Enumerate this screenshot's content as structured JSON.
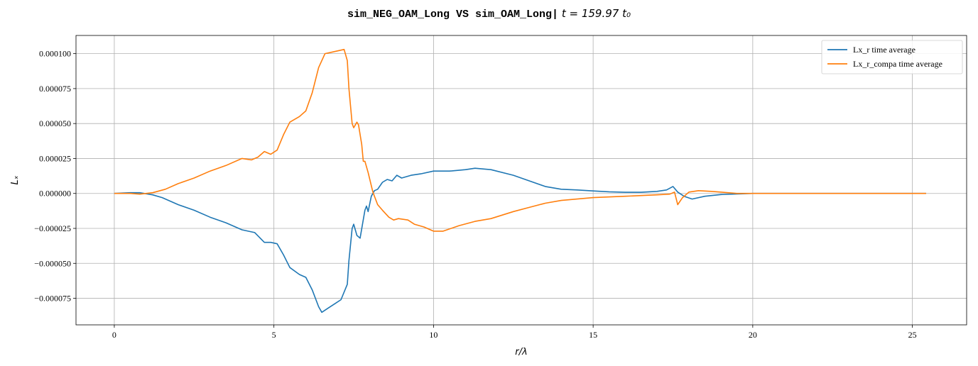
{
  "chart_data": {
    "type": "line",
    "title": {
      "prefix": "sim_NEG_OAM_Long VS sim_OAM_Long|",
      "math": "t = 159.97 t₀"
    },
    "xlabel": "r/λ",
    "ylabel": "Lₓ",
    "xlim": [
      -1.2,
      26.7
    ],
    "ylim": [
      -9.4e-05,
      0.000113
    ],
    "xticks": [
      0,
      5,
      10,
      15,
      20,
      25
    ],
    "xtick_labels": [
      "0",
      "5",
      "10",
      "15",
      "20",
      "25"
    ],
    "yticks": [
      -7.5e-05,
      -5e-05,
      -2.5e-05,
      0,
      2.5e-05,
      5e-05,
      7.5e-05,
      0.0001
    ],
    "ytick_labels": [
      "−0.000075",
      "−0.000050",
      "−0.000025",
      "0.000000",
      "0.000025",
      "0.000050",
      "0.000075",
      "0.000100"
    ],
    "grid": true,
    "legend_position": "upper right",
    "series": [
      {
        "name": "Lx_r time average",
        "color": "#1f77b4",
        "points": [
          [
            0,
            0
          ],
          [
            0.5,
            5e-07
          ],
          [
            0.8,
            5e-07
          ],
          [
            1.2,
            -1e-06
          ],
          [
            1.5,
            -3e-06
          ],
          [
            2.0,
            -8e-06
          ],
          [
            2.5,
            -1.2e-05
          ],
          [
            3.0,
            -1.7e-05
          ],
          [
            3.5,
            -2.1e-05
          ],
          [
            4.0,
            -2.6e-05
          ],
          [
            4.4,
            -2.8e-05
          ],
          [
            4.7,
            -3.5e-05
          ],
          [
            4.9,
            -3.5e-05
          ],
          [
            5.1,
            -3.6e-05
          ],
          [
            5.3,
            -4.4e-05
          ],
          [
            5.5,
            -5.3e-05
          ],
          [
            5.8,
            -5.8e-05
          ],
          [
            6.0,
            -6e-05
          ],
          [
            6.2,
            -6.9e-05
          ],
          [
            6.4,
            -8.1e-05
          ],
          [
            6.5,
            -8.5e-05
          ],
          [
            6.7,
            -8.2e-05
          ],
          [
            6.9,
            -7.9e-05
          ],
          [
            7.1,
            -7.6e-05
          ],
          [
            7.3,
            -6.5e-05
          ],
          [
            7.35,
            -4.8e-05
          ],
          [
            7.45,
            -2.5e-05
          ],
          [
            7.5,
            -2.2e-05
          ],
          [
            7.6,
            -3e-05
          ],
          [
            7.7,
            -3.2e-05
          ],
          [
            7.85,
            -1.2e-05
          ],
          [
            7.9,
            -9e-06
          ],
          [
            7.95,
            -1.3e-05
          ],
          [
            8.05,
            -2e-06
          ],
          [
            8.15,
            2e-06
          ],
          [
            8.25,
            3e-06
          ],
          [
            8.4,
            8e-06
          ],
          [
            8.55,
            1e-05
          ],
          [
            8.7,
            9e-06
          ],
          [
            8.85,
            1.3e-05
          ],
          [
            9.0,
            1.1e-05
          ],
          [
            9.3,
            1.3e-05
          ],
          [
            9.6,
            1.4e-05
          ],
          [
            10.0,
            1.6e-05
          ],
          [
            10.5,
            1.6e-05
          ],
          [
            11.0,
            1.7e-05
          ],
          [
            11.3,
            1.8e-05
          ],
          [
            11.8,
            1.7e-05
          ],
          [
            12.5,
            1.3e-05
          ],
          [
            13.0,
            9e-06
          ],
          [
            13.5,
            5e-06
          ],
          [
            14.0,
            3e-06
          ],
          [
            14.5,
            2.5e-06
          ],
          [
            15.0,
            1.8e-06
          ],
          [
            15.5,
            1.2e-06
          ],
          [
            16.0,
            8e-07
          ],
          [
            16.5,
            8e-07
          ],
          [
            17.0,
            1.5e-06
          ],
          [
            17.3,
            2.5e-06
          ],
          [
            17.5,
            5e-06
          ],
          [
            17.65,
            1e-06
          ],
          [
            17.85,
            -2e-06
          ],
          [
            18.1,
            -4e-06
          ],
          [
            18.5,
            -2e-06
          ],
          [
            19.0,
            -8e-07
          ],
          [
            20.0,
            0
          ],
          [
            21.0,
            0
          ],
          [
            22.0,
            0
          ],
          [
            23.0,
            0
          ],
          [
            24.0,
            0
          ],
          [
            25.43,
            0
          ]
        ]
      },
      {
        "name": "Lx_r_compa time average",
        "color": "#ff7f0e",
        "points": [
          [
            0,
            0
          ],
          [
            0.5,
            0
          ],
          [
            0.8,
            -5e-07
          ],
          [
            1.2,
            5e-07
          ],
          [
            1.6,
            3e-06
          ],
          [
            2.0,
            7e-06
          ],
          [
            2.5,
            1.1e-05
          ],
          [
            3.0,
            1.6e-05
          ],
          [
            3.5,
            2e-05
          ],
          [
            4.0,
            2.5e-05
          ],
          [
            4.3,
            2.4e-05
          ],
          [
            4.5,
            2.6e-05
          ],
          [
            4.7,
            3e-05
          ],
          [
            4.9,
            2.8e-05
          ],
          [
            5.1,
            3.1e-05
          ],
          [
            5.3,
            4.2e-05
          ],
          [
            5.5,
            5.1e-05
          ],
          [
            5.8,
            5.5e-05
          ],
          [
            6.0,
            5.9e-05
          ],
          [
            6.2,
            7.2e-05
          ],
          [
            6.4,
            9e-05
          ],
          [
            6.6,
            0.0001
          ],
          [
            6.8,
            0.000101
          ],
          [
            7.0,
            0.000102
          ],
          [
            7.2,
            0.000103
          ],
          [
            7.3,
            9.5e-05
          ],
          [
            7.35,
            7.5e-05
          ],
          [
            7.45,
            5e-05
          ],
          [
            7.5,
            4.7e-05
          ],
          [
            7.6,
            5.1e-05
          ],
          [
            7.65,
            4.9e-05
          ],
          [
            7.75,
            3.5e-05
          ],
          [
            7.8,
            2.3e-05
          ],
          [
            7.85,
            2.3e-05
          ],
          [
            7.95,
            1.5e-05
          ],
          [
            8.1,
            1e-06
          ],
          [
            8.25,
            -8e-06
          ],
          [
            8.4,
            -1.2e-05
          ],
          [
            8.6,
            -1.7e-05
          ],
          [
            8.75,
            -1.9e-05
          ],
          [
            8.9,
            -1.8e-05
          ],
          [
            9.2,
            -1.9e-05
          ],
          [
            9.4,
            -2.2e-05
          ],
          [
            9.7,
            -2.4e-05
          ],
          [
            10.0,
            -2.7e-05
          ],
          [
            10.3,
            -2.7e-05
          ],
          [
            10.8,
            -2.3e-05
          ],
          [
            11.3,
            -2e-05
          ],
          [
            11.8,
            -1.8e-05
          ],
          [
            12.5,
            -1.3e-05
          ],
          [
            13.0,
            -1e-05
          ],
          [
            13.5,
            -7e-06
          ],
          [
            14.0,
            -5e-06
          ],
          [
            14.5,
            -4e-06
          ],
          [
            15.0,
            -3e-06
          ],
          [
            16.0,
            -2e-06
          ],
          [
            17.0,
            -1e-06
          ],
          [
            17.4,
            -5e-07
          ],
          [
            17.55,
            1e-06
          ],
          [
            17.65,
            -8e-06
          ],
          [
            17.8,
            -3e-06
          ],
          [
            18.0,
            1e-06
          ],
          [
            18.3,
            2e-06
          ],
          [
            18.7,
            1.5e-06
          ],
          [
            19.0,
            1e-06
          ],
          [
            19.5,
            0
          ],
          [
            20.0,
            0
          ],
          [
            22.0,
            0
          ],
          [
            24.0,
            0
          ],
          [
            25.43,
            0
          ]
        ]
      }
    ]
  }
}
